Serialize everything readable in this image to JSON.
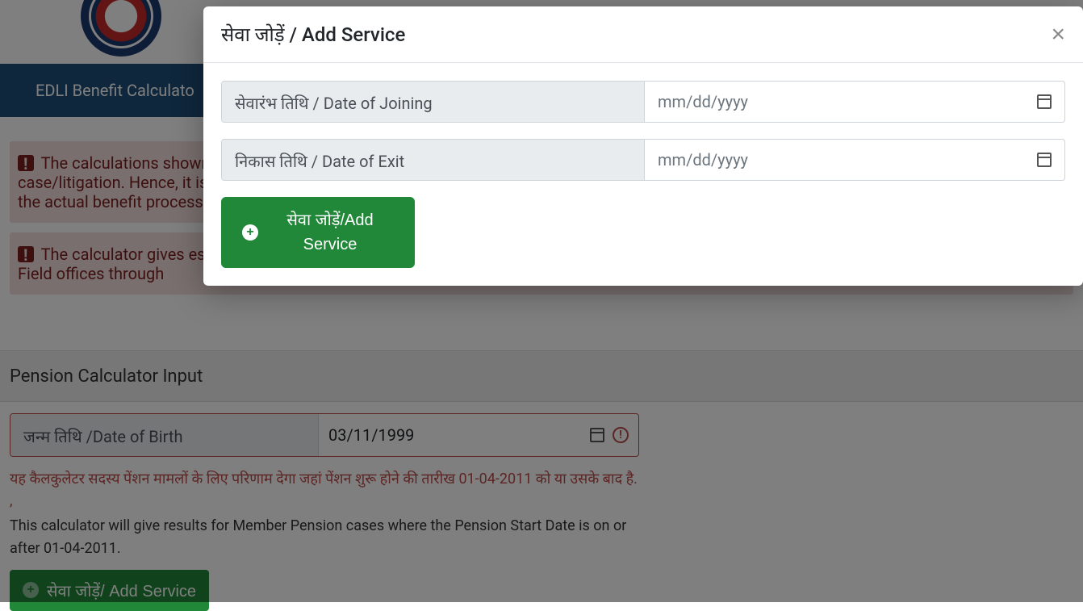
{
  "nav": {
    "item1": "EDLI Benefit Calculato"
  },
  "alerts": {
    "a1": "The calculations shown here are for information purpose only. This data would not be accepted for any legal reference or in any court case/litigation. Hence, it is requested that this calculator may not be quoted as authority for taking any decision. For actual details, kindly refer to the actual benefit process",
    "a2": "The calculator gives estimation of amount based on the date being entered. For actual amount, kindly refer to the benefit processed by the Field offices through"
  },
  "section": {
    "title": "Pension Calculator Input"
  },
  "dob": {
    "label": "जन्म तिथि /Date of Birth",
    "value": "03/11/1999"
  },
  "notes": {
    "hi": "यह कैलकुलेटर सदस्य पेंशन मामलों के लिए परिणाम देगा जहां पेंशन शुरू होने की तारीख 01-04-2011 को या उसके बाद है. ,",
    "en": "This calculator will give results for Member Pension cases where the Pension Start Date is on or after 01-04-2011."
  },
  "buttons": {
    "addServiceBg": "सेवा जोड़ें/ Add Service"
  },
  "modal": {
    "title": "सेवा जोड़ें / Add Service",
    "doj_label": "सेवारंभ तिथि / Date of Joining",
    "doe_label": "निकास तिथि / Date of Exit",
    "date_placeholder": "mm/dd/yyyy",
    "submit": "सेवा जोड़ें/Add Service"
  }
}
